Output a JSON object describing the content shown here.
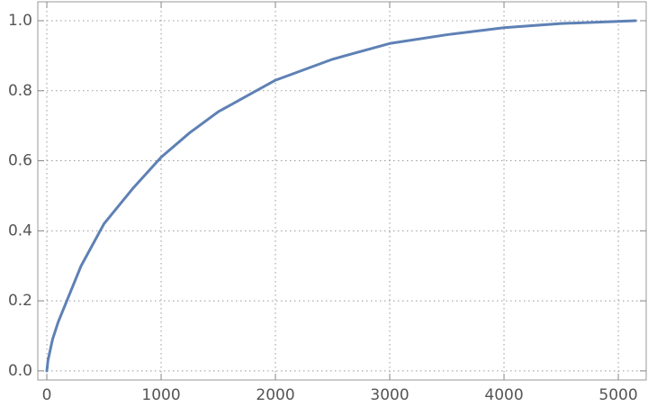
{
  "chart_data": {
    "type": "line",
    "x": [
      0,
      10,
      50,
      100,
      200,
      300,
      500,
      750,
      1000,
      1250,
      1500,
      1750,
      2000,
      2500,
      3000,
      3500,
      4000,
      4500,
      5000,
      5150
    ],
    "series": [
      {
        "color": "#5e81b5",
        "values": [
          0,
          0.03,
          0.09,
          0.14,
          0.22,
          0.3,
          0.42,
          0.52,
          0.61,
          0.68,
          0.74,
          0.785,
          0.83,
          0.89,
          0.935,
          0.96,
          0.98,
          0.992,
          0.998,
          1.0
        ]
      }
    ],
    "xlim": [
      -79,
      5244
    ],
    "ylim": [
      -0.026,
      1.054
    ],
    "xticks": [
      0,
      1000,
      2000,
      3000,
      4000,
      5000
    ],
    "yticks": [
      {
        "value": 0,
        "label": "0.0"
      },
      {
        "value": 0.2,
        "label": "0.2"
      },
      {
        "value": 0.4,
        "label": "0.4"
      },
      {
        "value": 0.6,
        "label": "0.6"
      },
      {
        "value": 0.8,
        "label": "0.8"
      },
      {
        "value": 1.0,
        "label": "1.0"
      }
    ],
    "grid": true
  }
}
